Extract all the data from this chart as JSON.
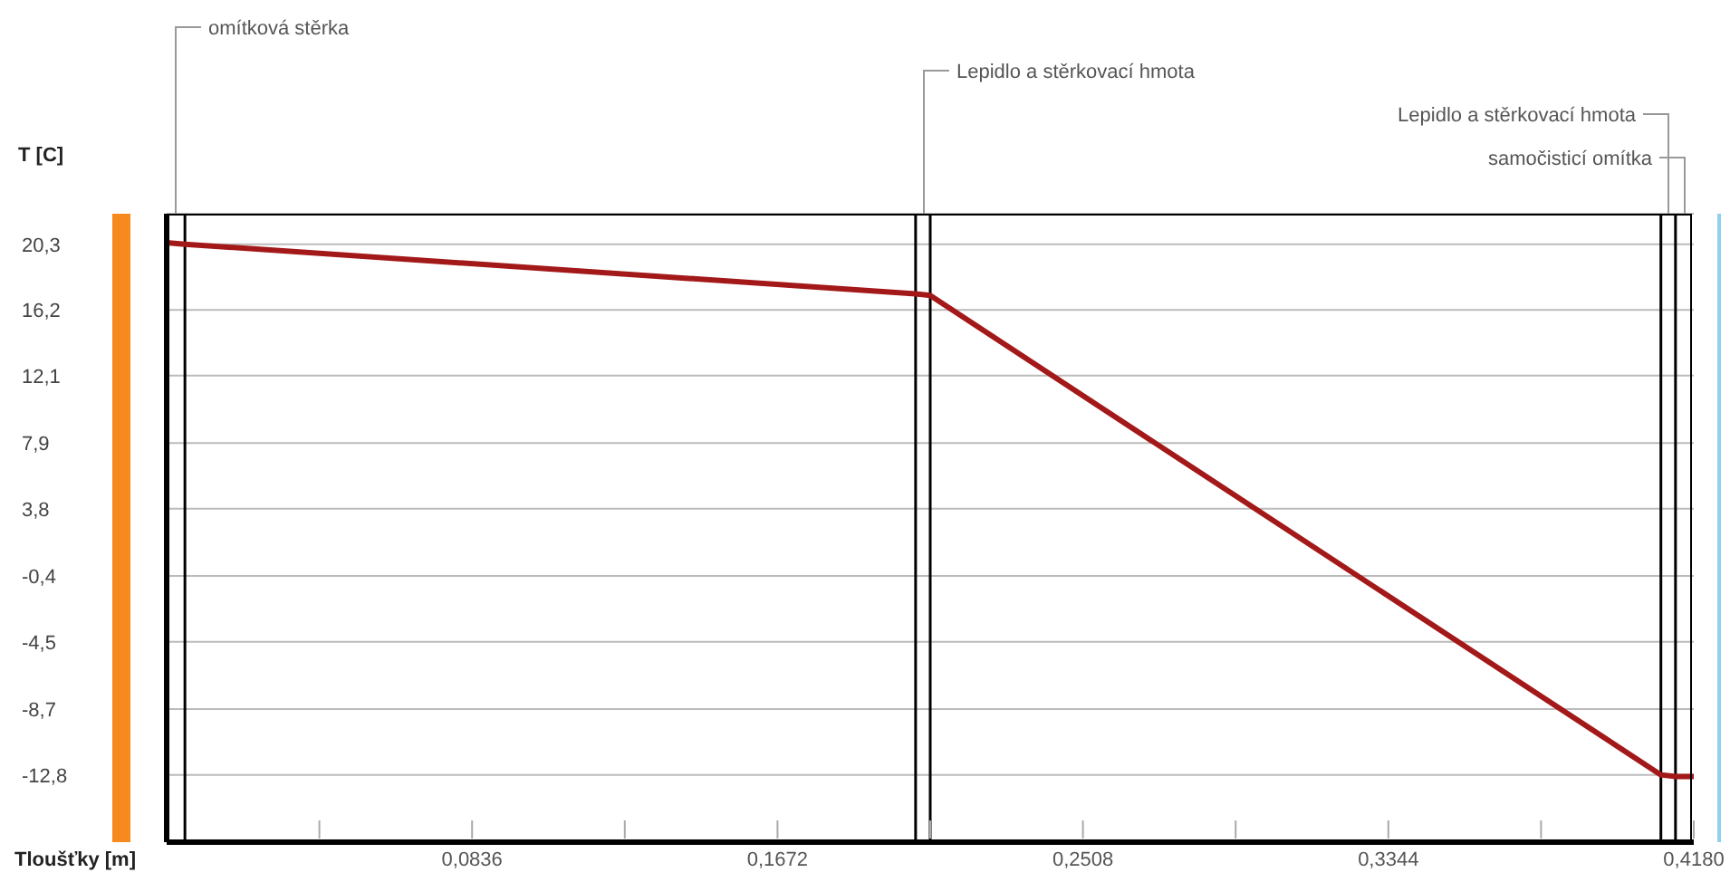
{
  "chart_data": {
    "type": "line",
    "xlabel": "Tloušťky [m]",
    "ylabel": "T [C]",
    "x": [
      0,
      0.005,
      0.205,
      0.209,
      0.409,
      0.413,
      0.418
    ],
    "series": [
      {
        "color": "#a31818",
        "values": [
          20.4,
          20.3,
          17.2,
          17.1,
          -12.8,
          -12.9,
          -12.9
        ]
      }
    ],
    "xlim": [
      0,
      0.418
    ],
    "ylim": [
      -17,
      22.2
    ],
    "xticks": [
      {
        "value": 0.0418,
        "label": null
      },
      {
        "value": 0.0836,
        "label": "0,0836"
      },
      {
        "value": 0.1254,
        "label": null
      },
      {
        "value": 0.1672,
        "label": "0,1672"
      },
      {
        "value": 0.209,
        "label": null
      },
      {
        "value": 0.2508,
        "label": "0,2508"
      },
      {
        "value": 0.2926,
        "label": null
      },
      {
        "value": 0.3344,
        "label": "0,3344"
      },
      {
        "value": 0.3762,
        "label": null
      },
      {
        "value": 0.418,
        "label": "0,4180"
      }
    ],
    "yticks": [
      {
        "value": 20.3,
        "label": "20,3"
      },
      {
        "value": 16.2,
        "label": "16,2"
      },
      {
        "value": 12.1,
        "label": "12,1"
      },
      {
        "value": 7.9,
        "label": "7,9"
      },
      {
        "value": 3.8,
        "label": "3,8"
      },
      {
        "value": -0.4,
        "label": "-0,4"
      },
      {
        "value": -4.5,
        "label": "-4,5"
      },
      {
        "value": -8.7,
        "label": "-8,7"
      },
      {
        "value": -12.8,
        "label": "-12,8"
      }
    ],
    "grid": "y",
    "marker": "none",
    "ref_lines": [
      {
        "axis": "x",
        "value": 0.005,
        "color": "#000000"
      },
      {
        "axis": "x",
        "value": 0.205,
        "color": "#000000"
      },
      {
        "axis": "x",
        "value": 0.209,
        "color": "#000000"
      },
      {
        "axis": "x",
        "value": 0.409,
        "color": "#000000"
      },
      {
        "axis": "x",
        "value": 0.413,
        "color": "#000000"
      }
    ],
    "annotations": [
      "omítková stěrka",
      "Lepidlo a stěrkovací hmota",
      "Lepidlo a stěrkovací hmota",
      "samočisticí omítka"
    ]
  }
}
